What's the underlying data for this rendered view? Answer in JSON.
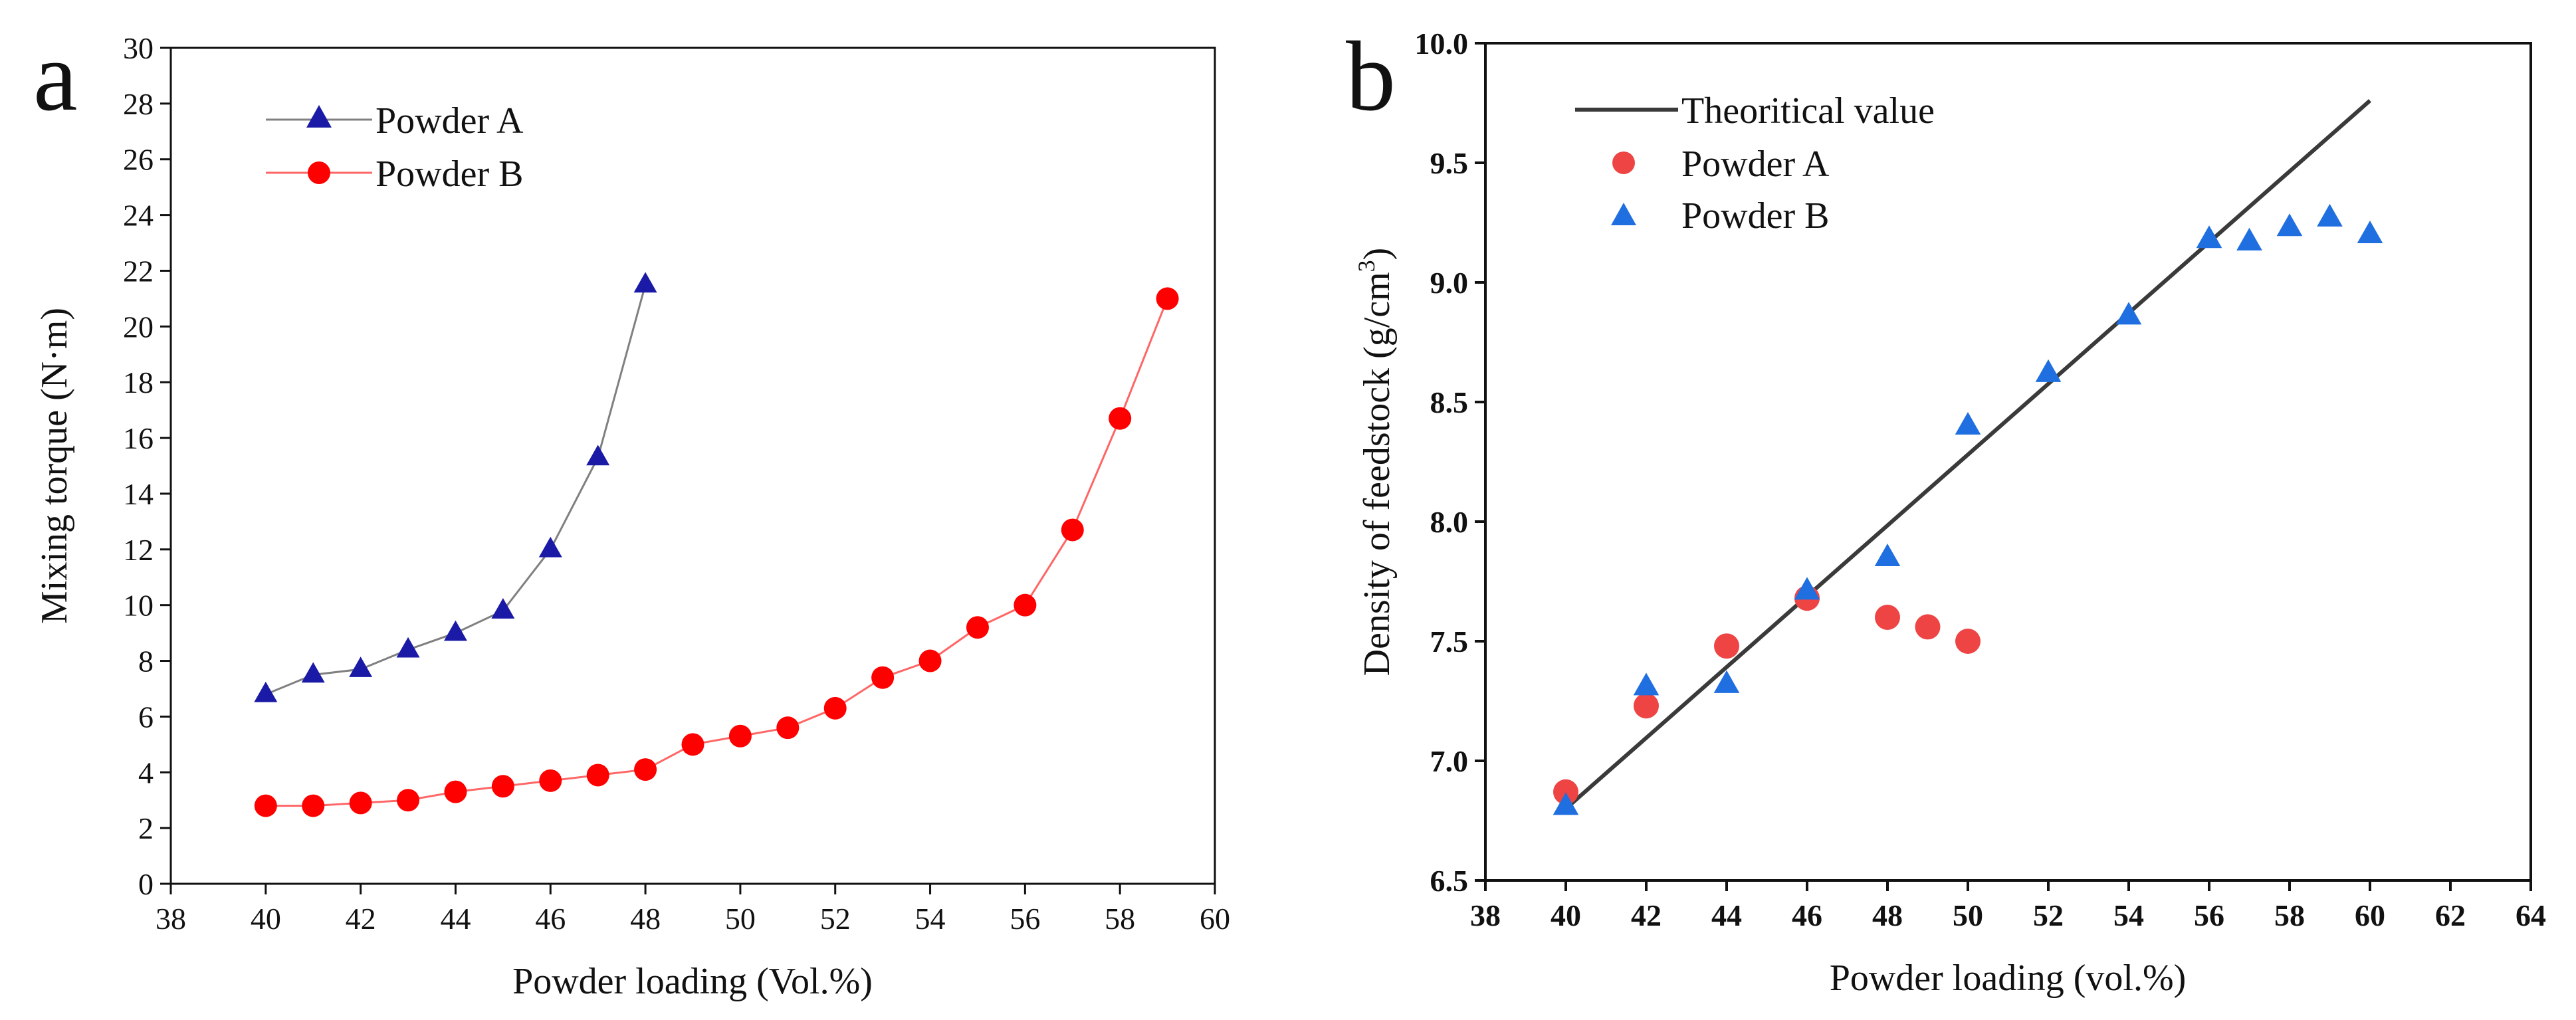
{
  "chart_data": [
    {
      "type": "line",
      "panel_label": "a",
      "xlabel": "Powder loading (Vol.%)",
      "ylabel": "Mixing torque (N·m)",
      "xlim": [
        38,
        60
      ],
      "ylim": [
        0,
        30
      ],
      "xticks": [
        "38",
        "40",
        "42",
        "44",
        "46",
        "48",
        "50",
        "52",
        "54",
        "56",
        "58",
        "60"
      ],
      "yticks": [
        "0",
        "2",
        "4",
        "6",
        "8",
        "10",
        "12",
        "14",
        "16",
        "18",
        "20",
        "22",
        "24",
        "26",
        "28",
        "30"
      ],
      "grid": false,
      "legend_position": "top-left",
      "series": [
        {
          "name": "Powder A",
          "marker": "triangle",
          "color": "#1a1aa6",
          "line_color": "#808080",
          "x": [
            40,
            41,
            42,
            43,
            44,
            45,
            46,
            47,
            48
          ],
          "y": [
            6.8,
            7.5,
            7.7,
            8.4,
            9.0,
            9.8,
            12.0,
            15.3,
            21.5
          ]
        },
        {
          "name": "Powder B",
          "marker": "circle",
          "color": "#ff0000",
          "line_color": "#ff6666",
          "x": [
            40,
            41,
            42,
            43,
            44,
            45,
            46,
            47,
            48,
            49,
            50,
            51,
            52,
            53,
            54,
            55,
            56,
            57,
            58,
            59
          ],
          "y": [
            2.8,
            2.8,
            2.9,
            3.0,
            3.3,
            3.5,
            3.7,
            3.9,
            4.1,
            5.0,
            5.3,
            5.6,
            6.3,
            7.4,
            8.0,
            9.2,
            10.0,
            12.7,
            16.7,
            21.0
          ]
        }
      ]
    },
    {
      "type": "scatter",
      "panel_label": "b",
      "xlabel": "Powder loading (vol.%)",
      "ylabel_main": "Density of feedstock (g/cm",
      "ylabel_sup": "3",
      "ylabel_end": ")",
      "xlim": [
        38,
        64
      ],
      "ylim": [
        6.5,
        10.0
      ],
      "xticks": [
        "38",
        "40",
        "42",
        "44",
        "46",
        "48",
        "50",
        "52",
        "54",
        "56",
        "58",
        "60",
        "62",
        "64"
      ],
      "yticks": [
        "6.5",
        "7.0",
        "7.5",
        "8.0",
        "8.5",
        "9.0",
        "9.5",
        "10.0"
      ],
      "grid": false,
      "legend_position": "top-left",
      "theoretical_line": {
        "name": "Theoritical value",
        "color": "#3a3a3a",
        "x": [
          40,
          60
        ],
        "y": [
          6.8,
          9.76
        ]
      },
      "series": [
        {
          "name": "Powder A",
          "marker": "circle",
          "color": "#ee4444",
          "x": [
            40,
            42,
            44,
            46,
            48,
            49,
            50
          ],
          "y": [
            6.87,
            7.23,
            7.48,
            7.68,
            7.6,
            7.56,
            7.5
          ]
        },
        {
          "name": "Powder B",
          "marker": "triangle",
          "color": "#1f6fe0",
          "x": [
            40,
            42,
            44,
            46,
            48,
            50,
            52,
            54,
            56,
            57,
            58,
            59,
            60
          ],
          "y": [
            6.81,
            7.31,
            7.32,
            7.71,
            7.85,
            8.4,
            8.62,
            8.86,
            9.18,
            9.17,
            9.23,
            9.27,
            9.2
          ]
        }
      ]
    }
  ]
}
